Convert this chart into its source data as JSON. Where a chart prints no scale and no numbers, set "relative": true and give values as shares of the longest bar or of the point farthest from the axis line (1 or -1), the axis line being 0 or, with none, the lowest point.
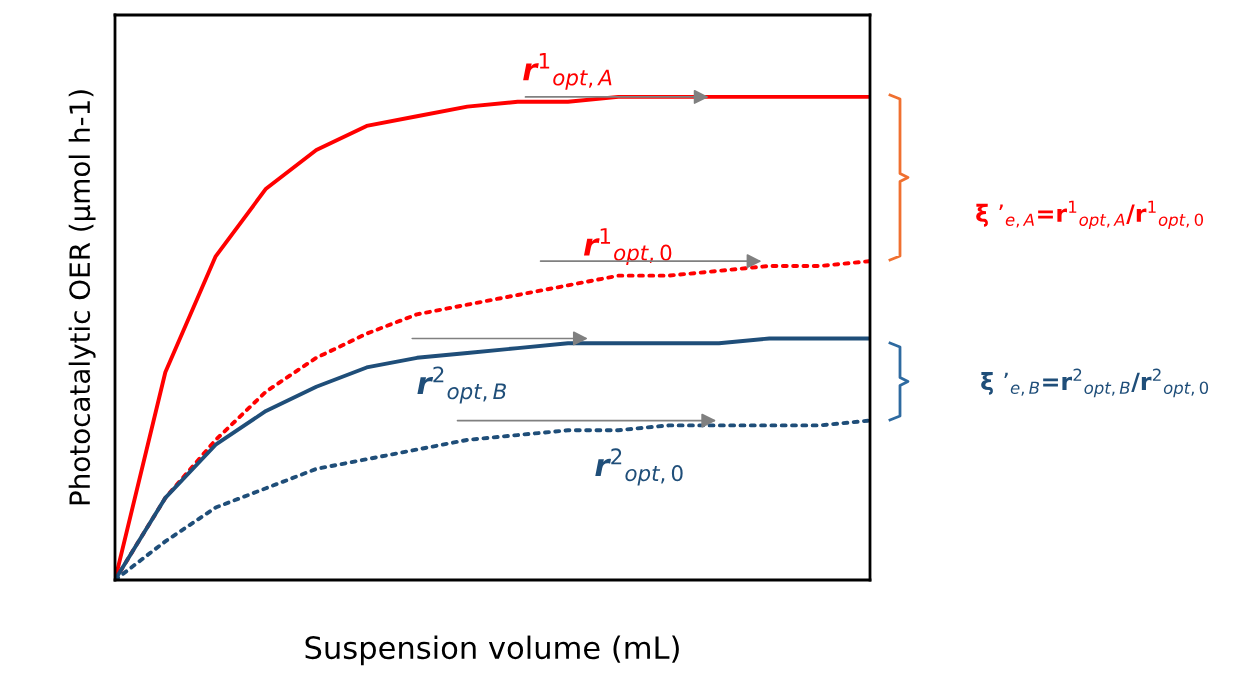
{
  "chart_data": {
    "type": "line",
    "relative": true,
    "xlabel": "Suspension volume (mL)",
    "ylabel": "Photocatalytic OER (μmol h-1)",
    "categories": [
      null,
      null,
      null,
      null,
      null,
      null,
      null,
      null,
      null,
      null,
      null,
      null,
      null,
      null,
      null,
      null
    ],
    "series": [
      {
        "name": "r$^{1}$$_{opt,A}$",
        "color": "#ff0000",
        "line_style": "solid",
        "values": [
          0,
          0.43,
          0.67,
          0.81,
          0.89,
          0.94,
          0.96,
          0.98,
          0.99,
          0.99,
          1,
          1,
          1,
          1,
          1,
          1
        ]
      },
      {
        "name": "r$^{1}$$_{opt,0}$",
        "color": "#ff0000",
        "line_style": "dotted",
        "values": [
          0,
          0.17,
          0.29,
          0.39,
          0.46,
          0.51,
          0.55,
          0.57,
          0.59,
          0.61,
          0.63,
          0.63,
          0.64,
          0.65,
          0.65,
          0.66
        ]
      },
      {
        "name": "r$^{2}$$_{opt,B}$",
        "color": "#1f4e79",
        "line_style": "solid",
        "values": [
          0,
          0.17,
          0.28,
          0.35,
          0.4,
          0.44,
          0.46,
          0.47,
          0.48,
          0.49,
          0.49,
          0.49,
          0.49,
          0.5,
          0.5,
          0.5
        ]
      },
      {
        "name": "r$^{2}$$_{opt,0}$",
        "color": "#1f4e79",
        "line_style": "dotted",
        "values": [
          0,
          0.08,
          0.15,
          0.19,
          0.23,
          0.25,
          0.27,
          0.29,
          0.3,
          0.31,
          0.31,
          0.32,
          0.32,
          0.32,
          0.32,
          0.33
        ]
      }
    ],
    "annotations": [
      "ξ ’$_{e,A}$=r$^{1}$$_{opt,A}$/r$^{1}$$_{opt,0}$",
      "ξ ’$_{e,B}$=r$^{2}$$_{opt,B}$/r$^{2}$$_{opt,0}$"
    ],
    "marker": "none"
  }
}
